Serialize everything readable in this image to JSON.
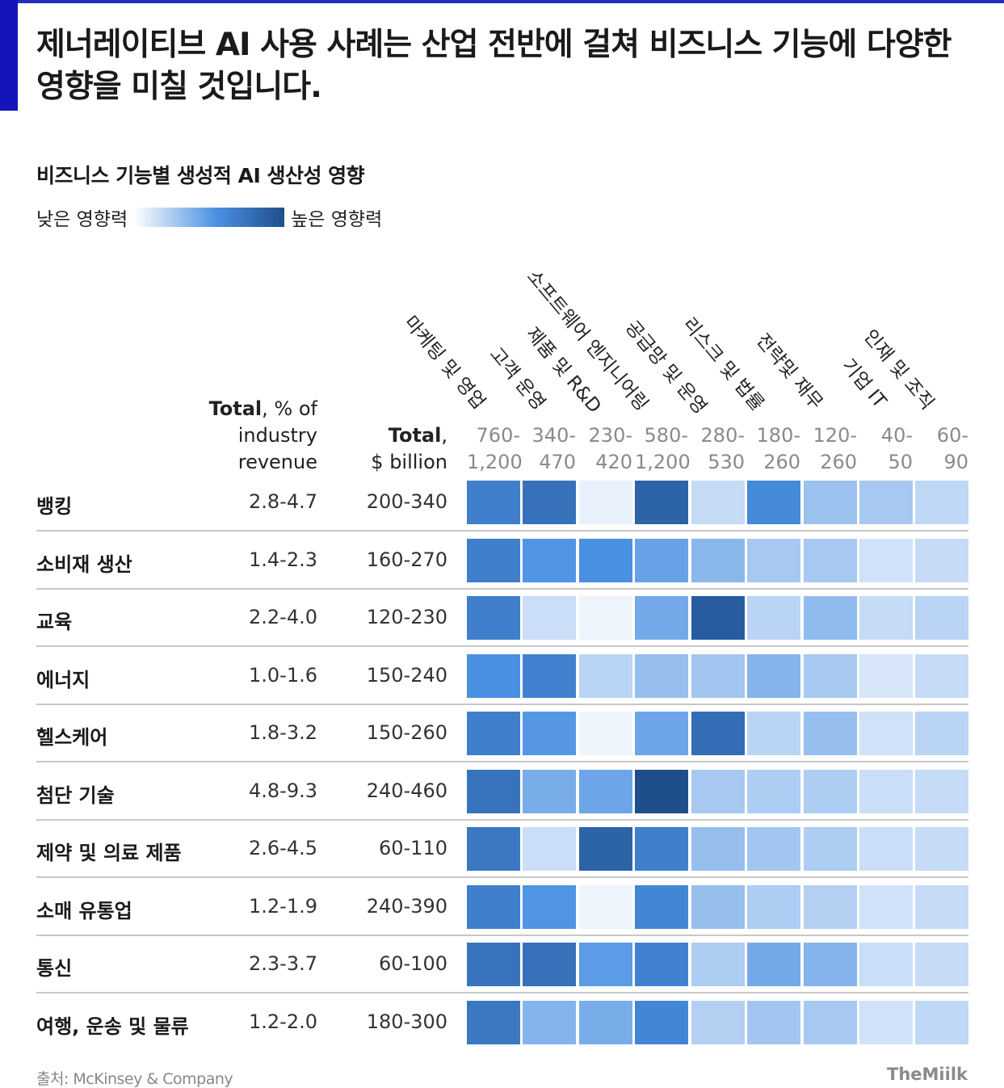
{
  "headline": "제너레이티브 AI 사용 사례는 산업 전반에 걸쳐 비즈니스 기능에 다양한 영향을 미칠 것입니다.",
  "chart_data": {
    "type": "heatmap",
    "title": "비즈니스 기능별 생성적 AI 생산성 영향",
    "legend": {
      "low": "낮은 영향력",
      "high": "높은 영향력",
      "colors": [
        "#ffffff",
        "#4a90e2",
        "#1f4e8c"
      ]
    },
    "header_revenue": {
      "bold": "Total",
      "rest1": ", % of",
      "rest2": "industry",
      "rest3": "revenue"
    },
    "header_total": {
      "bold": "Total",
      "rest1": ",",
      "rest2": "$ billion"
    },
    "columns": [
      {
        "name": "마케팅 및 영업",
        "range_top": "760-",
        "range_bottom": "1,200"
      },
      {
        "name": "고객 운영",
        "range_top": "340-",
        "range_bottom": "470"
      },
      {
        "name": "제품 및 R&D",
        "range_top": "230-",
        "range_bottom": "420"
      },
      {
        "name": "소프트웨어 엔지니어링",
        "range_top": "580-",
        "range_bottom": "1,200"
      },
      {
        "name": "공급망 및 운영",
        "range_top": "280-",
        "range_bottom": "530"
      },
      {
        "name": "리스크 및 법률",
        "range_top": "180-",
        "range_bottom": "260"
      },
      {
        "name": "전략및 재무",
        "range_top": "120-",
        "range_bottom": "260"
      },
      {
        "name": "기업 IT",
        "range_top": "40-",
        "range_bottom": "50"
      },
      {
        "name": "인재 및 조직",
        "range_top": "60-",
        "range_bottom": "90"
      }
    ],
    "rows": [
      {
        "name": "뱅킹",
        "revenue_pct": "2.8-4.7",
        "total_bn": "200-340",
        "values": [
          0.72,
          0.8,
          0.08,
          0.88,
          0.2,
          0.66,
          0.34,
          0.3,
          0.22
        ]
      },
      {
        "name": "소비재 생산",
        "revenue_pct": "1.4-2.3",
        "total_bn": "160-270",
        "values": [
          0.72,
          0.6,
          0.62,
          0.52,
          0.4,
          0.3,
          0.3,
          0.16,
          0.2
        ]
      },
      {
        "name": "교육",
        "revenue_pct": "2.2-4.0",
        "total_bn": "120-230",
        "values": [
          0.72,
          0.18,
          0.06,
          0.48,
          0.92,
          0.24,
          0.38,
          0.2,
          0.24
        ]
      },
      {
        "name": "에너지",
        "revenue_pct": "1.0-1.6",
        "total_bn": "150-240",
        "values": [
          0.62,
          0.7,
          0.24,
          0.36,
          0.32,
          0.42,
          0.3,
          0.14,
          0.2
        ]
      },
      {
        "name": "헬스케어",
        "revenue_pct": "1.8-3.2",
        "total_bn": "150-260",
        "values": [
          0.72,
          0.58,
          0.06,
          0.5,
          0.82,
          0.24,
          0.36,
          0.16,
          0.24
        ]
      },
      {
        "name": "첨단 기술",
        "revenue_pct": "4.8-9.3",
        "total_bn": "240-460",
        "values": [
          0.78,
          0.46,
          0.5,
          1.0,
          0.3,
          0.28,
          0.28,
          0.18,
          0.2
        ]
      },
      {
        "name": "제약 및 의료 제품",
        "revenue_pct": "2.6-4.5",
        "total_bn": "60-110",
        "values": [
          0.76,
          0.18,
          0.88,
          0.72,
          0.36,
          0.32,
          0.28,
          0.18,
          0.2
        ]
      },
      {
        "name": "소매 유통업",
        "revenue_pct": "1.2-1.9",
        "total_bn": "240-390",
        "values": [
          0.72,
          0.6,
          0.06,
          0.68,
          0.36,
          0.28,
          0.26,
          0.16,
          0.2
        ]
      },
      {
        "name": "통신",
        "revenue_pct": "2.3-3.7",
        "total_bn": "60-100",
        "values": [
          0.78,
          0.8,
          0.56,
          0.7,
          0.28,
          0.48,
          0.42,
          0.18,
          0.2
        ]
      },
      {
        "name": "여행, 운송 및 물류",
        "revenue_pct": "1.2-2.0",
        "total_bn": "180-300",
        "values": [
          0.76,
          0.42,
          0.46,
          0.68,
          0.26,
          0.32,
          0.3,
          0.16,
          0.22
        ]
      }
    ]
  },
  "source": "출처: McKinsey & Company",
  "brand": "TheMiilk"
}
